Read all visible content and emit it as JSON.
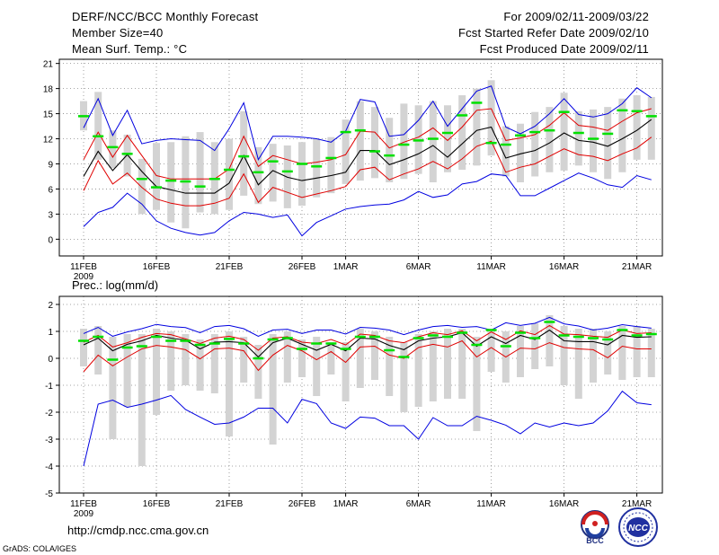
{
  "header": {
    "title": "DERF/NCC/BCC Monthly Forecast",
    "member_size": "Member Size=40",
    "variable_label": "Mean Surf. Temp.: °C",
    "period": "For 2009/02/11-2009/03/22",
    "started": "Fcst Started Refer Date 2009/02/10",
    "produced": "Fcst Produced Date 2009/02/11"
  },
  "footer": {
    "url": "http://cmdp.ncc.cma.gov.cn",
    "credit": "GrADS: COLA/IGES",
    "logo1_text": "BCC",
    "logo2_text": "NCC"
  },
  "colors": {
    "box": "#d3d3d3",
    "median": "#00e000",
    "mean": "#000000",
    "spread": "#e00000",
    "extreme": "#0000e0",
    "grid": "#888888"
  },
  "chart_data": [
    {
      "type": "line",
      "title": "Mean Surf. Temp.: °C",
      "xlabel": "",
      "ylabel": "°C",
      "ylim": [
        -2,
        21.5
      ],
      "yticks": [
        0,
        3,
        6,
        9,
        12,
        15,
        18,
        21
      ],
      "x_dates": [
        "2009/02/11",
        "02/12",
        "02/13",
        "02/14",
        "02/15",
        "02/16",
        "02/17",
        "02/18",
        "02/19",
        "02/20",
        "02/21",
        "02/22",
        "02/23",
        "02/24",
        "02/25",
        "02/26",
        "02/27",
        "02/28",
        "03/01",
        "03/02",
        "03/03",
        "03/04",
        "03/05",
        "03/06",
        "03/07",
        "03/08",
        "03/09",
        "03/10",
        "03/11",
        "03/12",
        "03/13",
        "03/14",
        "03/15",
        "03/16",
        "03/17",
        "03/18",
        "03/19",
        "03/20",
        "03/21",
        "03/22"
      ],
      "xtick_labels": [
        "11FEB",
        "16FEB",
        "21FEB",
        "26FEB",
        "1MAR",
        "6MAR",
        "11MAR",
        "16MAR",
        "21MAR"
      ],
      "xtick_days": [
        1,
        6,
        11,
        16,
        19,
        24,
        29,
        34,
        39
      ],
      "year_label": "2009",
      "series": [
        {
          "name": "max",
          "values": [
            1.5,
            3.2,
            3.8,
            5.5,
            4.2,
            2.2,
            1.3,
            0.8,
            0.5,
            0.8,
            2.2,
            3.2,
            3.0,
            2.6,
            2.9,
            0.4,
            2.0,
            2.8,
            3.6,
            3.9,
            4.1,
            4.2,
            4.7,
            5.7,
            5.0,
            5.3,
            6.6,
            6.9,
            7.8,
            7.6,
            5.2,
            5.2,
            6.1,
            7.0,
            7.9,
            7.3,
            6.5,
            6.2,
            7.6,
            7.1
          ]
        },
        {
          "name": "upper",
          "values": [
            9.5,
            12.8,
            9.8,
            12.4,
            10.0,
            7.6,
            7.2,
            7.2,
            7.2,
            7.2,
            8.4,
            12.3,
            8.7,
            10.0,
            9.5,
            9.0,
            9.2,
            9.5,
            10.1,
            12.9,
            12.8,
            10.9,
            11.6,
            12.2,
            13.3,
            11.8,
            13.4,
            15.4,
            15.6,
            11.8,
            12.1,
            12.5,
            13.6,
            15.1,
            13.6,
            13.4,
            13.0,
            14.1,
            15.1,
            15.6
          ]
        },
        {
          "name": "mean",
          "values": [
            7.5,
            10.5,
            8.2,
            10.1,
            8.1,
            6.3,
            5.9,
            5.5,
            5.5,
            5.5,
            6.7,
            10.0,
            6.5,
            8.2,
            7.4,
            7.0,
            7.3,
            7.6,
            8.0,
            10.6,
            10.6,
            8.9,
            9.5,
            10.2,
            11.2,
            9.8,
            11.4,
            13.0,
            13.4,
            9.7,
            10.2,
            10.6,
            11.5,
            12.7,
            11.8,
            11.6,
            11.1,
            12.0,
            13.0,
            14.3
          ]
        },
        {
          "name": "lower",
          "values": [
            5.8,
            9.4,
            6.6,
            7.9,
            6.2,
            4.8,
            4.3,
            4.0,
            4.0,
            4.3,
            4.9,
            7.8,
            4.4,
            6.2,
            5.6,
            5.0,
            5.4,
            5.8,
            6.3,
            8.3,
            8.6,
            7.1,
            7.8,
            8.4,
            9.3,
            8.4,
            9.6,
            11.1,
            11.7,
            8.0,
            8.6,
            9.0,
            9.9,
            10.8,
            10.1,
            9.9,
            9.4,
            10.2,
            10.9,
            12.2
          ]
        },
        {
          "name": "min",
          "values": [
            13.3,
            16.8,
            12.4,
            15.4,
            11.4,
            11.8,
            12.0,
            11.9,
            11.8,
            10.6,
            13.2,
            16.3,
            9.5,
            12.3,
            12.3,
            12.2,
            12.0,
            11.6,
            12.9,
            16.7,
            16.4,
            12.3,
            12.5,
            14.2,
            16.5,
            13.5,
            15.6,
            17.7,
            18.3,
            13.4,
            12.6,
            13.5,
            15.0,
            16.8,
            14.9,
            14.6,
            15.0,
            16.2,
            18.1,
            16.9
          ]
        },
        {
          "name": "median",
          "values": [
            14.7,
            12.3,
            11.0,
            10.2,
            7.2,
            6.2,
            7.0,
            6.9,
            6.3,
            7.2,
            8.3,
            9.9,
            8.0,
            9.3,
            8.1,
            9.0,
            8.7,
            9.7,
            12.8,
            13.0,
            10.5,
            10.0,
            11.3,
            11.8,
            12.0,
            12.7,
            14.8,
            16.3,
            11.5,
            11.3,
            12.4,
            12.8,
            13.0,
            15.2,
            12.7,
            12.0,
            12.6,
            15.4,
            15.3,
            14.7
          ]
        }
      ],
      "boxes": [
        {
          "low": 13.0,
          "high": 16.5
        },
        {
          "low": 9.5,
          "high": 17.6
        },
        {
          "low": 8.5,
          "high": 13.0
        },
        {
          "low": 7.5,
          "high": 12.5
        },
        {
          "low": 3.0,
          "high": 9.6
        },
        {
          "low": 3.5,
          "high": 11.5
        },
        {
          "low": 2.0,
          "high": 11.6
        },
        {
          "low": 1.3,
          "high": 12.3
        },
        {
          "low": 3.2,
          "high": 12.8
        },
        {
          "low": 3.0,
          "high": 11.6
        },
        {
          "low": 3.5,
          "high": 12.0
        },
        {
          "low": 5.2,
          "high": 15.3
        },
        {
          "low": 4.2,
          "high": 11.0
        },
        {
          "low": 4.5,
          "high": 11.4
        },
        {
          "low": 3.7,
          "high": 11.2
        },
        {
          "low": 4.0,
          "high": 11.6
        },
        {
          "low": 5.0,
          "high": 12.0
        },
        {
          "low": 5.5,
          "high": 12.2
        },
        {
          "low": 6.6,
          "high": 14.3
        },
        {
          "low": 7.0,
          "high": 16.5
        },
        {
          "low": 7.3,
          "high": 15.8
        },
        {
          "low": 6.8,
          "high": 14.5
        },
        {
          "low": 7.2,
          "high": 16.2
        },
        {
          "low": 7.8,
          "high": 16.0
        },
        {
          "low": 6.8,
          "high": 16.5
        },
        {
          "low": 8.0,
          "high": 16.0
        },
        {
          "low": 8.3,
          "high": 17.2
        },
        {
          "low": 8.8,
          "high": 18.0
        },
        {
          "low": 10.0,
          "high": 19.0
        },
        {
          "low": 7.5,
          "high": 13.5
        },
        {
          "low": 6.8,
          "high": 13.8
        },
        {
          "low": 7.5,
          "high": 15.2
        },
        {
          "low": 8.0,
          "high": 15.8
        },
        {
          "low": 8.2,
          "high": 17.5
        },
        {
          "low": 8.8,
          "high": 15.3
        },
        {
          "low": 8.0,
          "high": 15.5
        },
        {
          "low": 7.2,
          "high": 15.8
        },
        {
          "low": 8.0,
          "high": 16.8
        },
        {
          "low": 9.5,
          "high": 17.2
        },
        {
          "low": 9.5,
          "high": 17.0
        }
      ]
    },
    {
      "type": "line",
      "title": "Prec.: log(mm/d)",
      "xlabel": "",
      "ylabel": "log(mm/d)",
      "ylim": [
        -5,
        2.3
      ],
      "yticks": [
        -5,
        -4,
        -3,
        -2,
        -1,
        0,
        1,
        2
      ],
      "x_dates": [
        "2009/02/11",
        "02/12",
        "02/13",
        "02/14",
        "02/15",
        "02/16",
        "02/17",
        "02/18",
        "02/19",
        "02/20",
        "02/21",
        "02/22",
        "02/23",
        "02/24",
        "02/25",
        "02/26",
        "02/27",
        "02/28",
        "03/01",
        "03/02",
        "03/03",
        "03/04",
        "03/05",
        "03/06",
        "03/07",
        "03/08",
        "03/09",
        "03/10",
        "03/11",
        "03/12",
        "03/13",
        "03/14",
        "03/15",
        "03/16",
        "03/17",
        "03/18",
        "03/19",
        "03/20",
        "03/21",
        "03/22"
      ],
      "xtick_labels": [
        "11FEB",
        "16FEB",
        "21FEB",
        "26FEB",
        "1MAR",
        "6MAR",
        "11MAR",
        "16MAR",
        "21MAR"
      ],
      "xtick_days": [
        1,
        6,
        11,
        16,
        19,
        24,
        29,
        34,
        39
      ],
      "year_label": "2009",
      "series": [
        {
          "name": "max",
          "values": [
            0.92,
            1.15,
            0.82,
            0.98,
            1.1,
            1.26,
            1.18,
            1.14,
            0.95,
            1.18,
            1.22,
            1.1,
            0.82,
            1.05,
            1.08,
            0.92,
            1.05,
            1.05,
            0.9,
            1.15,
            1.12,
            1.05,
            0.88,
            1.05,
            1.18,
            1.22,
            1.15,
            1.18,
            1.05,
            1.32,
            1.22,
            1.3,
            1.52,
            1.28,
            1.2,
            1.05,
            1.12,
            1.25,
            1.18,
            1.12
          ]
        },
        {
          "name": "upper",
          "values": [
            0.6,
            0.85,
            0.42,
            0.58,
            0.78,
            0.92,
            0.88,
            0.72,
            0.55,
            0.75,
            0.82,
            0.7,
            0.3,
            0.75,
            0.8,
            0.6,
            0.55,
            0.7,
            0.5,
            0.9,
            0.85,
            0.65,
            0.58,
            0.8,
            0.95,
            0.88,
            1.02,
            0.65,
            0.98,
            0.7,
            1.02,
            0.88,
            1.22,
            0.9,
            0.88,
            0.82,
            0.78,
            1.05,
            0.92,
            0.95
          ]
        },
        {
          "name": "mean",
          "values": [
            0.5,
            0.75,
            0.28,
            0.52,
            0.65,
            0.85,
            0.75,
            0.68,
            0.35,
            0.6,
            0.62,
            0.58,
            0.05,
            0.58,
            0.75,
            0.52,
            0.3,
            0.52,
            0.28,
            0.75,
            0.72,
            0.48,
            0.32,
            0.65,
            0.75,
            0.8,
            0.95,
            0.45,
            0.8,
            0.55,
            0.85,
            0.7,
            1.05,
            0.65,
            0.62,
            0.62,
            0.5,
            0.85,
            0.78,
            0.8
          ]
        },
        {
          "name": "lower",
          "values": [
            -0.5,
            0.12,
            -0.28,
            0.05,
            0.35,
            0.48,
            0.42,
            0.32,
            -0.02,
            0.35,
            0.38,
            0.28,
            -0.45,
            0.12,
            0.48,
            0.28,
            -0.05,
            0.25,
            -0.15,
            0.42,
            0.45,
            0.12,
            0.0,
            0.4,
            0.52,
            0.42,
            0.65,
            0.05,
            0.4,
            0.05,
            0.38,
            0.35,
            0.58,
            0.4,
            0.35,
            0.32,
            0.02,
            0.45,
            0.35,
            0.35
          ]
        },
        {
          "name": "min",
          "values": [
            -4.0,
            -1.7,
            -1.55,
            -1.82,
            -1.7,
            -1.55,
            -1.38,
            -1.9,
            -2.18,
            -2.45,
            -2.4,
            -2.18,
            -1.85,
            -1.85,
            -2.4,
            -1.52,
            -1.68,
            -2.4,
            -2.6,
            -2.18,
            -2.22,
            -2.5,
            -2.5,
            -3.0,
            -2.2,
            -2.5,
            -2.5,
            -2.15,
            -2.3,
            -2.48,
            -2.8,
            -2.4,
            -2.55,
            -2.4,
            -2.5,
            -2.4,
            -1.95,
            -1.22,
            -1.65,
            -1.72
          ]
        },
        {
          "name": "median",
          "values": [
            0.65,
            0.8,
            -0.05,
            0.4,
            0.45,
            0.8,
            0.65,
            0.65,
            0.5,
            0.55,
            0.72,
            0.55,
            0.0,
            0.7,
            0.75,
            0.35,
            0.55,
            0.55,
            0.35,
            0.8,
            0.8,
            0.3,
            0.05,
            0.75,
            0.85,
            0.8,
            0.95,
            0.5,
            1.05,
            0.45,
            0.95,
            0.75,
            1.35,
            0.85,
            0.8,
            0.75,
            0.7,
            1.05,
            0.85,
            0.9
          ]
        }
      ],
      "boxes": [
        {
          "low": -0.3,
          "high": 1.1
        },
        {
          "low": -0.6,
          "high": 1.2
        },
        {
          "low": -3.0,
          "high": 0.8
        },
        {
          "low": -1.8,
          "high": 0.9
        },
        {
          "low": -4.0,
          "high": 0.9
        },
        {
          "low": -2.1,
          "high": 1.1
        },
        {
          "low": -1.2,
          "high": 1.0
        },
        {
          "low": -1.0,
          "high": 0.9
        },
        {
          "low": -1.2,
          "high": 0.7
        },
        {
          "low": -1.3,
          "high": 0.9
        },
        {
          "low": -2.9,
          "high": 1.0
        },
        {
          "low": -0.9,
          "high": 0.8
        },
        {
          "low": -1.5,
          "high": 0.5
        },
        {
          "low": -3.2,
          "high": 0.9
        },
        {
          "low": -0.9,
          "high": 1.0
        },
        {
          "low": -0.7,
          "high": 0.7
        },
        {
          "low": -1.4,
          "high": 0.8
        },
        {
          "low": -0.6,
          "high": 0.6
        },
        {
          "low": -1.6,
          "high": 0.6
        },
        {
          "low": -1.1,
          "high": 1.1
        },
        {
          "low": -0.8,
          "high": 1.0
        },
        {
          "low": -1.4,
          "high": 0.8
        },
        {
          "low": -2.0,
          "high": 0.6
        },
        {
          "low": -1.8,
          "high": 0.9
        },
        {
          "low": -1.6,
          "high": 1.0
        },
        {
          "low": -1.5,
          "high": 1.1
        },
        {
          "low": -1.5,
          "high": 1.1
        },
        {
          "low": -2.7,
          "high": 0.8
        },
        {
          "low": -0.5,
          "high": 1.1
        },
        {
          "low": -0.9,
          "high": 1.0
        },
        {
          "low": -0.7,
          "high": 1.2
        },
        {
          "low": -0.4,
          "high": 1.3
        },
        {
          "low": -0.3,
          "high": 1.6
        },
        {
          "low": -1.0,
          "high": 1.2
        },
        {
          "low": -1.5,
          "high": 1.1
        },
        {
          "low": -0.9,
          "high": 1.1
        },
        {
          "low": -0.6,
          "high": 1.0
        },
        {
          "low": -0.8,
          "high": 1.2
        },
        {
          "low": -0.7,
          "high": 1.2
        },
        {
          "low": -0.7,
          "high": 1.1
        }
      ]
    }
  ]
}
